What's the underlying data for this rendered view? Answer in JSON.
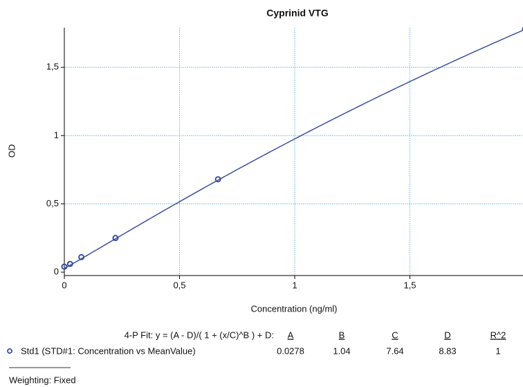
{
  "chart_data": {
    "type": "scatter",
    "title": "Cyprinid VTG",
    "x_label": "Concentration (ng/ml)",
    "y_label": "OD",
    "x": [
      0,
      0.025,
      0.074,
      0.222,
      0.667,
      2
    ],
    "series": [
      {
        "name": "Std1 (STD#1: Concentration vs MeanValue)",
        "color": "#3a4f9e",
        "values": [
          0.04,
          0.06,
          0.11,
          0.25,
          0.68,
          1.78
        ]
      }
    ],
    "xlim": [
      0,
      2
    ],
    "ylim": [
      -0.025,
      1.79
    ],
    "xticks": [
      0,
      {
        "value": 0.5,
        "label": "0,5"
      },
      1,
      {
        "value": 1.5,
        "label": "1,5"
      },
      2
    ],
    "yticks": [
      0,
      {
        "value": 0.5,
        "label": "0,5"
      },
      1,
      {
        "value": 1.5,
        "label": "1,5"
      }
    ],
    "grid": true,
    "fit": {
      "label": "4-P Fit: y = (A - D)/( 1 + (x/C)^B ) + D:",
      "columns": [
        "A",
        "B",
        "C",
        "D",
        "R^2"
      ],
      "values": [
        0.0278,
        1.04,
        7.64,
        8.83,
        1
      ]
    },
    "weighting": "Weighting: Fixed"
  }
}
